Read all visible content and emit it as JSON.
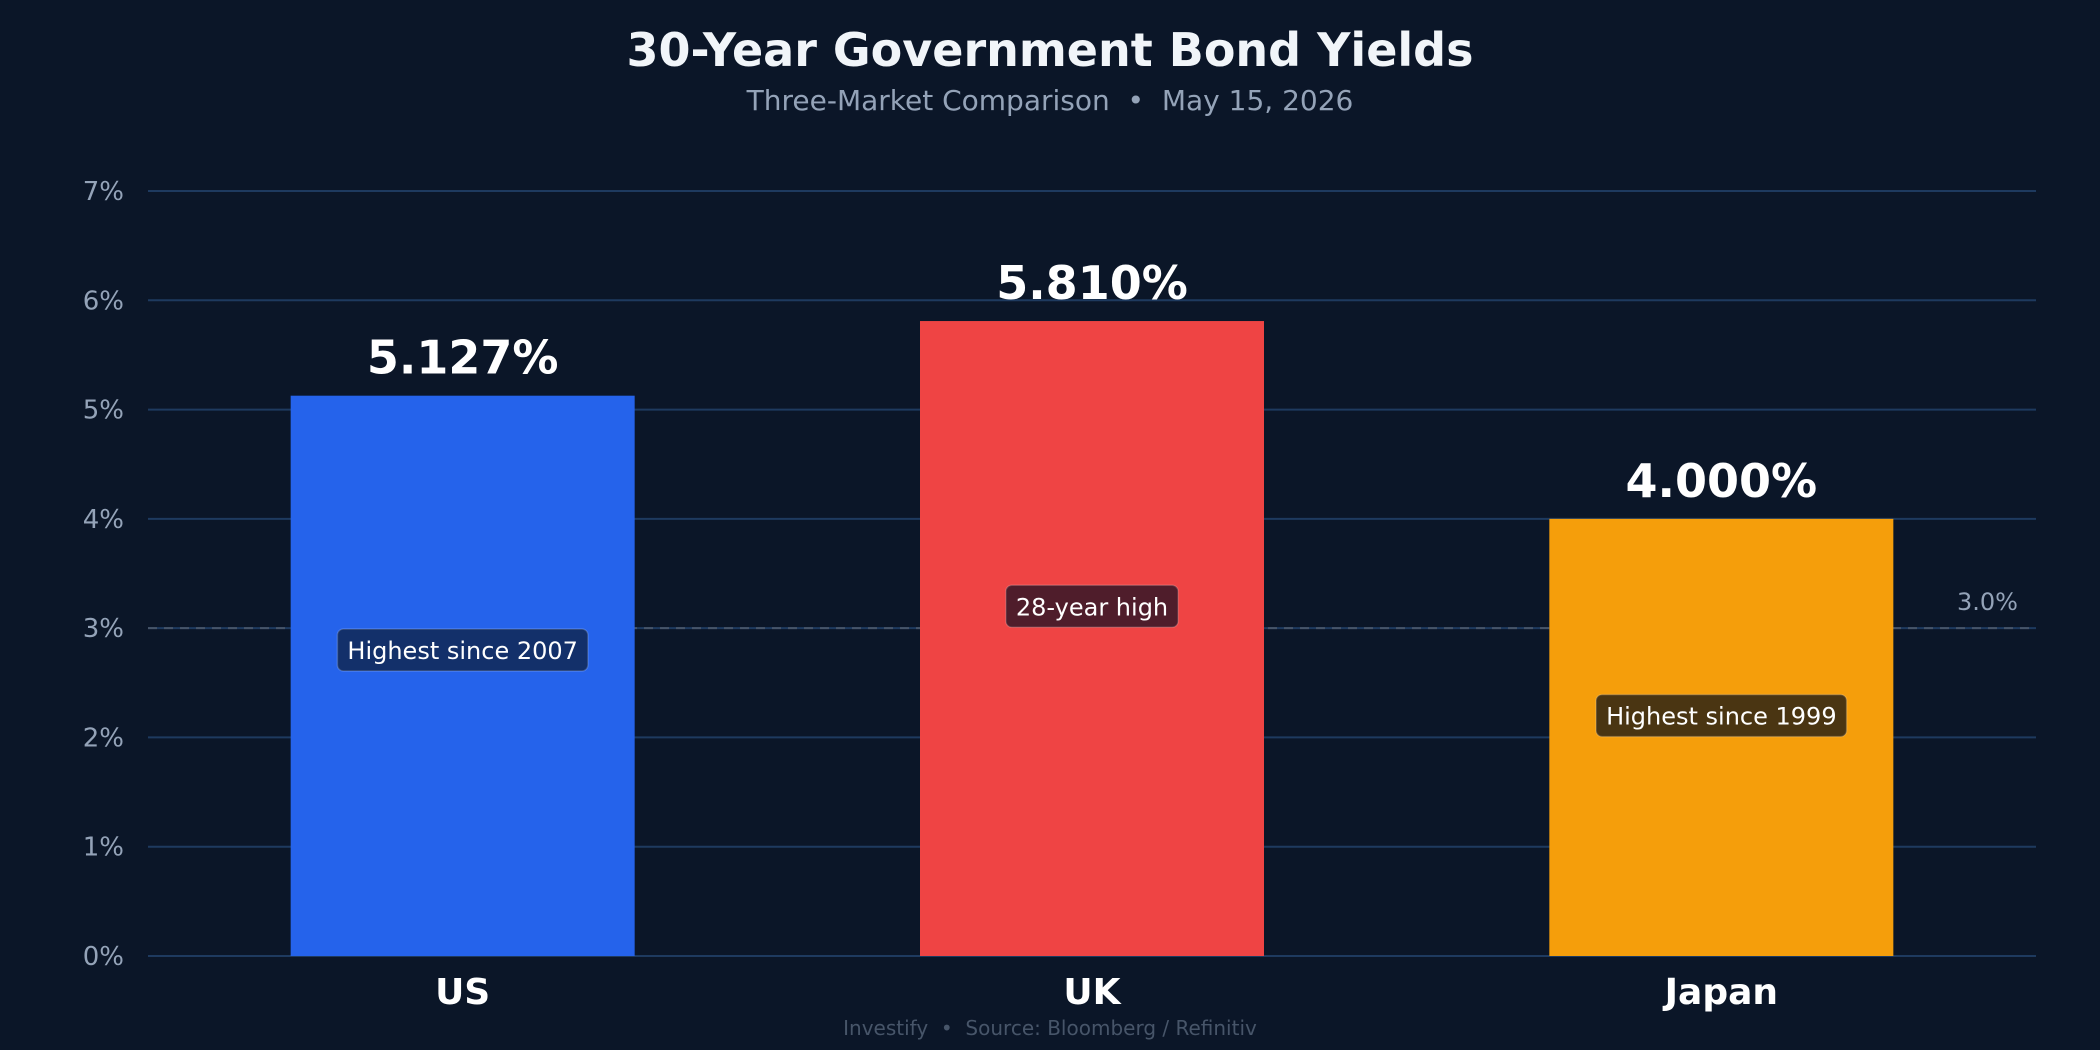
{
  "chart_data": {
    "type": "bar",
    "title": "30-Year Government Bond Yields",
    "subtitle": "Three-Market Comparison  •  May 15, 2026",
    "categories": [
      "US",
      "UK",
      "Japan"
    ],
    "values": [
      5.127,
      5.81,
      4.0
    ],
    "value_labels": [
      "5.127%",
      "5.810%",
      "4.000%"
    ],
    "colors": [
      "#2563eb",
      "#ef4444",
      "#f59e0b"
    ],
    "annotations": [
      "Highest since 2007",
      "28-year high",
      "Highest since 1999"
    ],
    "annotation_values": [
      2.8,
      3.2,
      2.2
    ],
    "annotation_colors": [
      "#13306a",
      "#4f1d2b",
      "#4a3512"
    ],
    "yticks": [
      0,
      1,
      2,
      3,
      4,
      5,
      6,
      7
    ],
    "ytick_labels": [
      "0%",
      "1%",
      "2%",
      "3%",
      "4%",
      "5%",
      "6%",
      "7%"
    ],
    "ylim": [
      0,
      7
    ],
    "reference_line": {
      "value": 3.0,
      "label": "3.0%"
    },
    "grid": true,
    "xlabel": "",
    "ylabel": "",
    "footer": "Investify  •  Source: Bloomberg / Refinitiv"
  }
}
